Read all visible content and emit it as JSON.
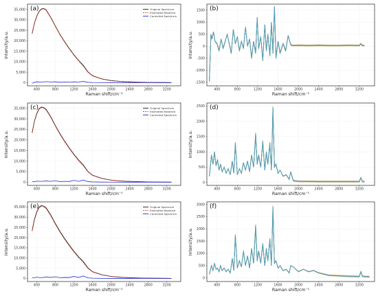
{
  "legend": {
    "original": "Original Spectrum",
    "baseline": "Estimated Baseline",
    "corrected": "Corrected Spectrum"
  },
  "colors": {
    "original": "#1a1a1a",
    "baseline": "#e0442a",
    "corrected": "#1f2fd8",
    "processed": "#4a9ec2",
    "processed_accents": [
      "#e8a23c",
      "#8c6bc4",
      "#6fc06a",
      "#e07a8a",
      "#3f8fd0",
      "#d4c24a"
    ]
  },
  "chart_data": [
    {
      "panel": "(a)",
      "type": "line",
      "xlabel": "Raman shift/cm⁻¹",
      "ylabel": "Intensity/a.u.",
      "xlim": [
        200,
        3500
      ],
      "ylim": [
        -1500,
        37500
      ],
      "xticks": [
        400,
        800,
        1200,
        1600,
        2000,
        2400,
        2800,
        3200
      ],
      "yticks": [
        0,
        5000,
        10000,
        15000,
        20000,
        25000,
        30000,
        35000
      ],
      "ytick_labels": [
        "0",
        "5,000",
        "10,000",
        "15,000",
        "20,000",
        "25,000",
        "30,000",
        "35,000"
      ],
      "legend_position": "top-right",
      "series": [
        {
          "name": "Original Spectrum",
          "role": "original",
          "x": [
            300,
            350,
            400,
            450,
            500,
            550,
            600,
            700,
            800,
            900,
            1000,
            1100,
            1200,
            1300,
            1400,
            1500,
            1600,
            1800,
            2000,
            2200,
            2400,
            2600,
            2800,
            3000,
            3200,
            3300
          ],
          "values": [
            23500,
            28500,
            31800,
            34000,
            35200,
            35400,
            34800,
            31200,
            27000,
            23000,
            19500,
            16300,
            13300,
            10600,
            8300,
            5200,
            3300,
            1800,
            1000,
            600,
            380,
            250,
            160,
            100,
            60,
            50
          ]
        },
        {
          "name": "Estimated Baseline",
          "role": "baseline",
          "x": [
            300,
            350,
            400,
            450,
            500,
            550,
            600,
            700,
            800,
            900,
            1000,
            1100,
            1200,
            1300,
            1400,
            1500,
            1600,
            1800,
            2000,
            2200,
            2400,
            2600,
            2800,
            3000,
            3200,
            3300
          ],
          "values": [
            23300,
            28300,
            31600,
            33800,
            35000,
            35200,
            34600,
            31000,
            26800,
            22800,
            19300,
            16100,
            13100,
            10400,
            7900,
            5000,
            3200,
            1750,
            980,
            590,
            370,
            245,
            155,
            95,
            58,
            48
          ]
        },
        {
          "name": "Corrected Spectrum",
          "role": "corrected",
          "x": [
            300,
            350,
            400,
            500,
            600,
            700,
            800,
            900,
            1000,
            1100,
            1200,
            1300,
            1400,
            1500,
            1600,
            1800,
            2000,
            2400,
            2800,
            3300
          ],
          "values": [
            -300,
            200,
            400,
            300,
            500,
            350,
            450,
            200,
            300,
            250,
            400,
            300,
            600,
            200,
            100,
            50,
            40,
            30,
            20,
            10
          ]
        }
      ]
    },
    {
      "panel": "(b)",
      "type": "line",
      "xlabel": "Raman shift/cm⁻¹",
      "ylabel": "Intensity/a.u.",
      "xlim": [
        200,
        3500
      ],
      "ylim": [
        -1650,
        1750
      ],
      "xticks": [
        400,
        800,
        1200,
        1600,
        2000,
        2400,
        2800,
        3200
      ],
      "yticks": [
        -1500,
        -1000,
        -500,
        0,
        500,
        1000,
        1500
      ],
      "ytick_labels": [
        "-1500",
        "-1000",
        "-500",
        "0",
        "500",
        "1000",
        "1500"
      ],
      "series": [
        {
          "role": "processed",
          "x": [
            250,
            280,
            300,
            330,
            360,
            400,
            440,
            480,
            520,
            560,
            600,
            640,
            680,
            720,
            760,
            800,
            840,
            880,
            920,
            960,
            1000,
            1040,
            1080,
            1120,
            1160,
            1190,
            1220,
            1260,
            1300,
            1340,
            1370,
            1400,
            1440,
            1470,
            1500,
            1530,
            1560,
            1600,
            1640,
            1700,
            1750,
            1800,
            1850,
            1900,
            2000,
            2200,
            2400,
            2600,
            2800,
            3000,
            3200,
            3230,
            3260,
            3300
          ],
          "values": [
            -1450,
            500,
            300,
            600,
            200,
            100,
            -200,
            300,
            -100,
            200,
            500,
            100,
            -300,
            700,
            100,
            400,
            -200,
            200,
            -100,
            800,
            0,
            300,
            -500,
            200,
            -300,
            1200,
            -100,
            400,
            -600,
            900,
            -200,
            500,
            -400,
            1000,
            -300,
            1650,
            -500,
            200,
            -300,
            100,
            -200,
            450,
            50,
            20,
            30,
            20,
            30,
            20,
            20,
            30,
            20,
            100,
            20,
            20
          ]
        }
      ]
    },
    {
      "panel": "(c)",
      "type": "line",
      "xlabel": "Raman shift/cm⁻¹",
      "ylabel": "Intensity/a.u.",
      "xlim": [
        200,
        3500
      ],
      "ylim": [
        -1500,
        37500
      ],
      "xticks": [
        400,
        800,
        1200,
        1600,
        2000,
        2400,
        2800,
        3200
      ],
      "yticks": [
        0,
        5000,
        10000,
        15000,
        20000,
        25000,
        30000,
        35000
      ],
      "ytick_labels": [
        "0",
        "5,000",
        "10,000",
        "15,000",
        "20,000",
        "25,000",
        "30,000",
        "35,000"
      ],
      "legend_position": "top-right",
      "series": [
        {
          "name": "Original Spectrum",
          "role": "original",
          "x": [
            300,
            350,
            400,
            450,
            500,
            550,
            600,
            700,
            800,
            900,
            1000,
            1100,
            1200,
            1300,
            1400,
            1500,
            1600,
            1800,
            2000,
            2200,
            2400,
            2600,
            2800,
            3000,
            3200,
            3300
          ],
          "values": [
            23500,
            29000,
            32500,
            34800,
            35600,
            35300,
            34500,
            31000,
            26800,
            22900,
            19400,
            16200,
            13200,
            10500,
            8200,
            5100,
            3300,
            1800,
            1000,
            600,
            380,
            250,
            160,
            100,
            60,
            50
          ]
        },
        {
          "name": "Estimated Baseline",
          "role": "baseline",
          "x": [
            300,
            350,
            400,
            450,
            500,
            550,
            600,
            700,
            800,
            900,
            1000,
            1100,
            1200,
            1300,
            1400,
            1500,
            1600,
            1800,
            2000,
            2200,
            2400,
            2600,
            2800,
            3000,
            3200,
            3300
          ],
          "values": [
            23200,
            28700,
            32200,
            34500,
            35300,
            35000,
            34200,
            30700,
            26500,
            22600,
            19100,
            15900,
            12900,
            10200,
            7800,
            4900,
            3200,
            1750,
            980,
            590,
            370,
            245,
            155,
            95,
            58,
            48
          ]
        },
        {
          "name": "Corrected Spectrum",
          "role": "corrected",
          "x": [
            300,
            350,
            400,
            500,
            600,
            700,
            800,
            900,
            1000,
            1100,
            1200,
            1300,
            1400,
            1500,
            1600,
            1800,
            2000,
            2400,
            2800,
            3300
          ],
          "values": [
            200,
            300,
            500,
            400,
            600,
            400,
            700,
            300,
            400,
            350,
            900,
            400,
            1000,
            300,
            150,
            60,
            40,
            30,
            20,
            10
          ]
        }
      ]
    },
    {
      "panel": "(d)",
      "type": "line",
      "xlabel": "Raman shift/cm⁻¹",
      "ylabel": "Intensity/a.u.",
      "xlim": [
        200,
        3500
      ],
      "ylim": [
        -100,
        2600
      ],
      "xticks": [
        400,
        800,
        1200,
        1600,
        2000,
        2400,
        2800,
        3200
      ],
      "yticks": [
        0,
        500,
        1000,
        1500,
        2000,
        2500
      ],
      "ytick_labels": [
        "0",
        "500",
        "1000",
        "1500",
        "2000",
        "2500"
      ],
      "series": [
        {
          "role": "processed",
          "x": [
            250,
            290,
            320,
            350,
            380,
            410,
            440,
            470,
            500,
            540,
            580,
            620,
            660,
            700,
            730,
            760,
            800,
            840,
            880,
            920,
            960,
            1000,
            1040,
            1080,
            1120,
            1160,
            1190,
            1220,
            1260,
            1300,
            1340,
            1370,
            1400,
            1440,
            1470,
            1500,
            1530,
            1560,
            1600,
            1640,
            1700,
            1760,
            1820,
            1850,
            1900,
            2000,
            2200,
            2400,
            2600,
            2800,
            3000,
            3200,
            3230,
            3260,
            3300
          ],
          "values": [
            200,
            900,
            600,
            1000,
            550,
            750,
            400,
            600,
            350,
            500,
            300,
            450,
            250,
            700,
            300,
            1300,
            250,
            450,
            300,
            650,
            400,
            700,
            350,
            900,
            500,
            1600,
            600,
            900,
            500,
            1350,
            400,
            1000,
            600,
            1300,
            400,
            2450,
            500,
            600,
            300,
            400,
            200,
            250,
            100,
            350,
            50,
            30,
            25,
            20,
            20,
            20,
            20,
            20,
            150,
            20,
            20
          ]
        }
      ]
    },
    {
      "panel": "(e)",
      "type": "line",
      "xlabel": "Raman shift/cm⁻¹",
      "ylabel": "Intensity/a.u.",
      "xlim": [
        200,
        3500
      ],
      "ylim": [
        -1500,
        37500
      ],
      "xticks": [
        400,
        800,
        1200,
        1600,
        2000,
        2400,
        2800,
        3200
      ],
      "yticks": [
        0,
        5000,
        10000,
        15000,
        20000,
        25000,
        30000,
        35000
      ],
      "ytick_labels": [
        "0",
        "5,000",
        "10,000",
        "15,000",
        "20,000",
        "25,000",
        "30,000",
        "35,000"
      ],
      "legend_position": "top-right",
      "series": [
        {
          "name": "Original Spectrum",
          "role": "original",
          "x": [
            300,
            350,
            400,
            450,
            500,
            550,
            600,
            700,
            800,
            900,
            1000,
            1100,
            1200,
            1300,
            1400,
            1500,
            1600,
            1800,
            2000,
            2200,
            2400,
            2600,
            2800,
            3000,
            3200,
            3300
          ],
          "values": [
            23500,
            29000,
            32600,
            34900,
            35700,
            35400,
            34600,
            31100,
            26900,
            23000,
            19500,
            16300,
            13300,
            10600,
            8300,
            5200,
            3300,
            1800,
            1000,
            600,
            380,
            250,
            160,
            100,
            60,
            50
          ]
        },
        {
          "name": "Estimated Baseline",
          "role": "baseline",
          "x": [
            300,
            350,
            400,
            450,
            500,
            550,
            600,
            700,
            800,
            900,
            1000,
            1100,
            1200,
            1300,
            1400,
            1500,
            1600,
            1800,
            2000,
            2200,
            2400,
            2600,
            2800,
            3000,
            3200,
            3300
          ],
          "values": [
            23100,
            28600,
            32200,
            34500,
            35300,
            35000,
            34200,
            30700,
            26500,
            22600,
            19100,
            15900,
            12900,
            10200,
            7800,
            4900,
            3200,
            1750,
            980,
            590,
            370,
            245,
            155,
            95,
            58,
            48
          ]
        },
        {
          "name": "Corrected Spectrum",
          "role": "corrected",
          "x": [
            300,
            350,
            400,
            500,
            600,
            700,
            800,
            900,
            1000,
            1100,
            1200,
            1300,
            1400,
            1500,
            1600,
            1800,
            2000,
            2400,
            2800,
            3300
          ],
          "values": [
            300,
            400,
            600,
            400,
            700,
            500,
            800,
            400,
            500,
            450,
            1000,
            500,
            1200,
            300,
            150,
            60,
            40,
            30,
            20,
            10
          ]
        }
      ]
    },
    {
      "panel": "(f)",
      "type": "line",
      "xlabel": "Raman shift/cm⁻¹",
      "ylabel": "Intensity/a.u.",
      "xlim": [
        200,
        3500
      ],
      "ylim": [
        -150,
        3100
      ],
      "xticks": [
        400,
        800,
        1200,
        1600,
        2000,
        2400,
        2800,
        3200
      ],
      "yticks": [
        0,
        500,
        1000,
        1500,
        2000,
        2500,
        3000
      ],
      "ytick_labels": [
        "0",
        "500",
        "1000",
        "1500",
        "2000",
        "2500",
        "3000"
      ],
      "series": [
        {
          "role": "processed",
          "x": [
            250,
            290,
            320,
            350,
            380,
            410,
            440,
            470,
            500,
            540,
            580,
            620,
            660,
            700,
            730,
            760,
            800,
            840,
            880,
            920,
            960,
            1000,
            1040,
            1080,
            1120,
            1160,
            1190,
            1220,
            1260,
            1300,
            1340,
            1370,
            1400,
            1440,
            1470,
            1500,
            1530,
            1560,
            1600,
            1640,
            1700,
            1760,
            1820,
            1850,
            1900,
            2000,
            2100,
            2200,
            2300,
            2400,
            2500,
            2600,
            2800,
            3000,
            3200,
            3230,
            3260,
            3300,
            3400
          ],
          "values": [
            150,
            500,
            300,
            600,
            350,
            400,
            250,
            500,
            300,
            400,
            250,
            350,
            200,
            800,
            300,
            1750,
            400,
            700,
            450,
            1100,
            500,
            900,
            400,
            1200,
            600,
            2150,
            700,
            1100,
            600,
            1400,
            500,
            1200,
            700,
            1600,
            500,
            2900,
            600,
            700,
            400,
            500,
            300,
            350,
            200,
            500,
            450,
            250,
            350,
            250,
            300,
            200,
            150,
            100,
            80,
            60,
            50,
            250,
            60,
            50,
            40
          ]
        }
      ]
    }
  ]
}
